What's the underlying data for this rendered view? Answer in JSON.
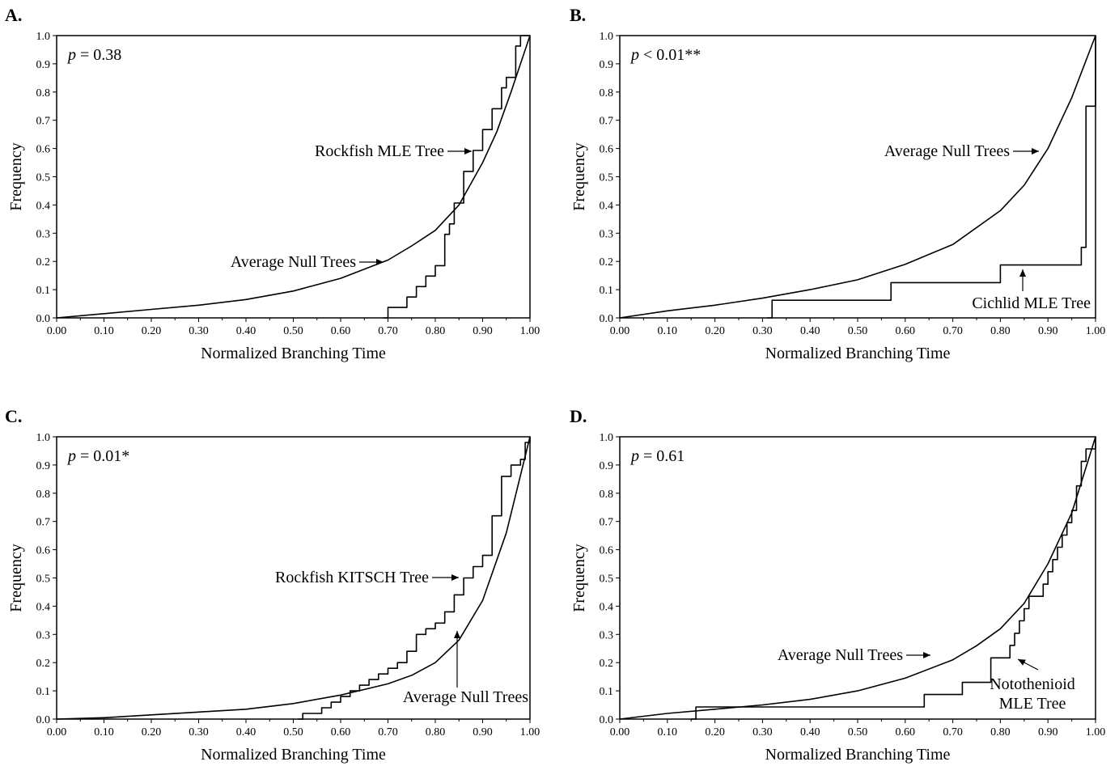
{
  "figure": {
    "panels": [
      {
        "letter": "A.",
        "p_symbol": "p",
        "p_rest": " = 0.38",
        "xlabel": "Normalized Branching Time",
        "ylabel": "Frequency",
        "annotations": [
          {
            "text": "Rockfish MLE Tree",
            "lines": [
              "Rockfish MLE Tree"
            ]
          },
          {
            "text": "Average Null Trees",
            "lines": [
              "Average Null Trees"
            ]
          }
        ]
      },
      {
        "letter": "B.",
        "p_symbol": "p",
        "p_rest": " < 0.01**",
        "xlabel": "Normalized Branching Time",
        "ylabel": "Frequency",
        "annotations": [
          {
            "text": "Average Null Trees",
            "lines": [
              "Average Null Trees"
            ]
          },
          {
            "text": "Cichlid MLE Tree",
            "lines": [
              "Cichlid MLE Tree"
            ]
          }
        ]
      },
      {
        "letter": "C.",
        "p_symbol": "p",
        "p_rest": " = 0.01*",
        "xlabel": "Normalized Branching Time",
        "ylabel": "Frequency",
        "annotations": [
          {
            "text": "Rockfish KITSCH Tree",
            "lines": [
              "Rockfish KITSCH Tree"
            ]
          },
          {
            "text": "Average Null Trees",
            "lines": [
              "Average Null Trees"
            ]
          }
        ]
      },
      {
        "letter": "D.",
        "p_symbol": "p",
        "p_rest": " = 0.61",
        "xlabel": "Normalized Branching Time",
        "ylabel": "Frequency",
        "annotations": [
          {
            "text": "Average Null Trees",
            "lines": [
              "Average Null Trees"
            ]
          },
          {
            "text": "Notothenioid MLE Tree",
            "lines": [
              "Notothenioid",
              "MLE Tree"
            ]
          }
        ]
      }
    ]
  },
  "chart_data": [
    {
      "type": "line",
      "panel": "A.",
      "xlabel": "Normalized Branching Time",
      "ylabel": "Frequency",
      "xlim": [
        0,
        1
      ],
      "ylim": [
        0,
        1
      ],
      "xticks": [
        "0.00",
        "0.10",
        "0.20",
        "0.30",
        "0.40",
        "0.50",
        "0.60",
        "0.70",
        "0.80",
        "0.90",
        "1.00"
      ],
      "yticks": [
        "0.0",
        "0.1",
        "0.2",
        "0.3",
        "0.4",
        "0.5",
        "0.6",
        "0.7",
        "0.8",
        "0.9",
        "1.0"
      ],
      "series": [
        {
          "name": "Average Null Trees",
          "x": [
            0,
            0.1,
            0.2,
            0.3,
            0.4,
            0.5,
            0.6,
            0.7,
            0.75,
            0.8,
            0.85,
            0.9,
            0.93,
            0.96,
            0.98,
            1.0
          ],
          "y": [
            0,
            0.015,
            0.03,
            0.045,
            0.065,
            0.095,
            0.14,
            0.205,
            0.255,
            0.31,
            0.4,
            0.55,
            0.66,
            0.8,
            0.9,
            1.0
          ]
        },
        {
          "name": "Rockfish MLE Tree",
          "step": true,
          "x": [
            0.69,
            0.7,
            0.74,
            0.76,
            0.78,
            0.8,
            0.82,
            0.83,
            0.84,
            0.86,
            0.88,
            0.89,
            0.9,
            0.92,
            0.94,
            0.95,
            0.97,
            0.98,
            1.0
          ],
          "y": [
            0,
            0.037,
            0.074,
            0.111,
            0.148,
            0.185,
            0.296,
            0.333,
            0.407,
            0.519,
            0.593,
            0.593,
            0.667,
            0.741,
            0.815,
            0.852,
            0.963,
            1.0,
            1.0
          ]
        }
      ]
    },
    {
      "type": "line",
      "panel": "B.",
      "xlabel": "Normalized Branching Time",
      "ylabel": "Frequency",
      "xlim": [
        0,
        1
      ],
      "ylim": [
        0,
        1
      ],
      "xticks": [
        "0.00",
        "0.10",
        "0.20",
        "0.30",
        "0.40",
        "0.50",
        "0.60",
        "0.70",
        "0.80",
        "0.90",
        "1.00"
      ],
      "yticks": [
        "0.0",
        "0.1",
        "0.2",
        "0.3",
        "0.4",
        "0.5",
        "0.6",
        "0.7",
        "0.8",
        "0.9",
        "1.0"
      ],
      "series": [
        {
          "name": "Average Null Trees",
          "x": [
            0,
            0.1,
            0.2,
            0.3,
            0.4,
            0.5,
            0.6,
            0.7,
            0.8,
            0.85,
            0.9,
            0.95,
            1.0
          ],
          "y": [
            0,
            0.025,
            0.045,
            0.07,
            0.1,
            0.135,
            0.19,
            0.26,
            0.38,
            0.47,
            0.6,
            0.78,
            1.0
          ]
        },
        {
          "name": "Cichlid MLE Tree",
          "step": true,
          "x": [
            0.31,
            0.32,
            0.56,
            0.57,
            0.79,
            0.8,
            0.96,
            0.97,
            0.98,
            1.0
          ],
          "y": [
            0,
            0.0625,
            0.0625,
            0.125,
            0.125,
            0.1875,
            0.1875,
            0.25,
            0.75,
            1.0
          ]
        }
      ]
    },
    {
      "type": "line",
      "panel": "C.",
      "xlabel": "Normalized Branching Time",
      "ylabel": "Frequency",
      "xlim": [
        0,
        1
      ],
      "ylim": [
        0,
        1
      ],
      "xticks": [
        "0.00",
        "0.10",
        "0.20",
        "0.30",
        "0.40",
        "0.50",
        "0.60",
        "0.70",
        "0.80",
        "0.90",
        "1.00"
      ],
      "yticks": [
        "0.0",
        "0.1",
        "0.2",
        "0.3",
        "0.4",
        "0.5",
        "0.6",
        "0.7",
        "0.8",
        "0.9",
        "1.0"
      ],
      "series": [
        {
          "name": "Average Null Trees",
          "x": [
            0,
            0.1,
            0.2,
            0.3,
            0.4,
            0.5,
            0.6,
            0.65,
            0.7,
            0.75,
            0.8,
            0.85,
            0.9,
            0.95,
            1.0
          ],
          "y": [
            0,
            0.005,
            0.015,
            0.025,
            0.035,
            0.055,
            0.085,
            0.105,
            0.125,
            0.155,
            0.2,
            0.28,
            0.42,
            0.66,
            1.0
          ]
        },
        {
          "name": "Rockfish KITSCH Tree",
          "step": true,
          "x": [
            0.51,
            0.52,
            0.56,
            0.58,
            0.6,
            0.62,
            0.64,
            0.66,
            0.68,
            0.7,
            0.72,
            0.74,
            0.76,
            0.78,
            0.8,
            0.82,
            0.84,
            0.86,
            0.88,
            0.9,
            0.92,
            0.94,
            0.96,
            0.98,
            0.99,
            1.0
          ],
          "y": [
            0,
            0.02,
            0.04,
            0.06,
            0.08,
            0.1,
            0.12,
            0.14,
            0.16,
            0.18,
            0.2,
            0.24,
            0.3,
            0.32,
            0.34,
            0.38,
            0.44,
            0.5,
            0.54,
            0.58,
            0.72,
            0.86,
            0.9,
            0.92,
            0.98,
            1.0
          ]
        }
      ]
    },
    {
      "type": "line",
      "panel": "D.",
      "xlabel": "Normalized Branching Time",
      "ylabel": "Frequency",
      "xlim": [
        0,
        1
      ],
      "ylim": [
        0,
        1
      ],
      "xticks": [
        "0.00",
        "0.10",
        "0.20",
        "0.30",
        "0.40",
        "0.50",
        "0.60",
        "0.70",
        "0.80",
        "0.90",
        "1.00"
      ],
      "yticks": [
        "0.0",
        "0.1",
        "0.2",
        "0.3",
        "0.4",
        "0.5",
        "0.6",
        "0.7",
        "0.8",
        "0.9",
        "1.0"
      ],
      "series": [
        {
          "name": "Average Null Trees",
          "x": [
            0,
            0.1,
            0.2,
            0.3,
            0.4,
            0.5,
            0.6,
            0.7,
            0.75,
            0.8,
            0.85,
            0.9,
            0.95,
            1.0
          ],
          "y": [
            0,
            0.02,
            0.035,
            0.05,
            0.07,
            0.1,
            0.145,
            0.21,
            0.26,
            0.32,
            0.41,
            0.55,
            0.73,
            1.0
          ]
        },
        {
          "name": "Notothenioid MLE Tree",
          "step": true,
          "x": [
            0.15,
            0.16,
            0.63,
            0.64,
            0.71,
            0.72,
            0.77,
            0.78,
            0.81,
            0.82,
            0.83,
            0.84,
            0.85,
            0.86,
            0.88,
            0.89,
            0.9,
            0.91,
            0.92,
            0.93,
            0.94,
            0.95,
            0.96,
            0.97,
            0.98,
            1.0
          ],
          "y": [
            0,
            0.043,
            0.043,
            0.087,
            0.087,
            0.13,
            0.13,
            0.217,
            0.217,
            0.261,
            0.304,
            0.348,
            0.391,
            0.435,
            0.435,
            0.478,
            0.522,
            0.565,
            0.609,
            0.652,
            0.696,
            0.739,
            0.826,
            0.913,
            0.957,
            1.0
          ]
        }
      ]
    }
  ]
}
